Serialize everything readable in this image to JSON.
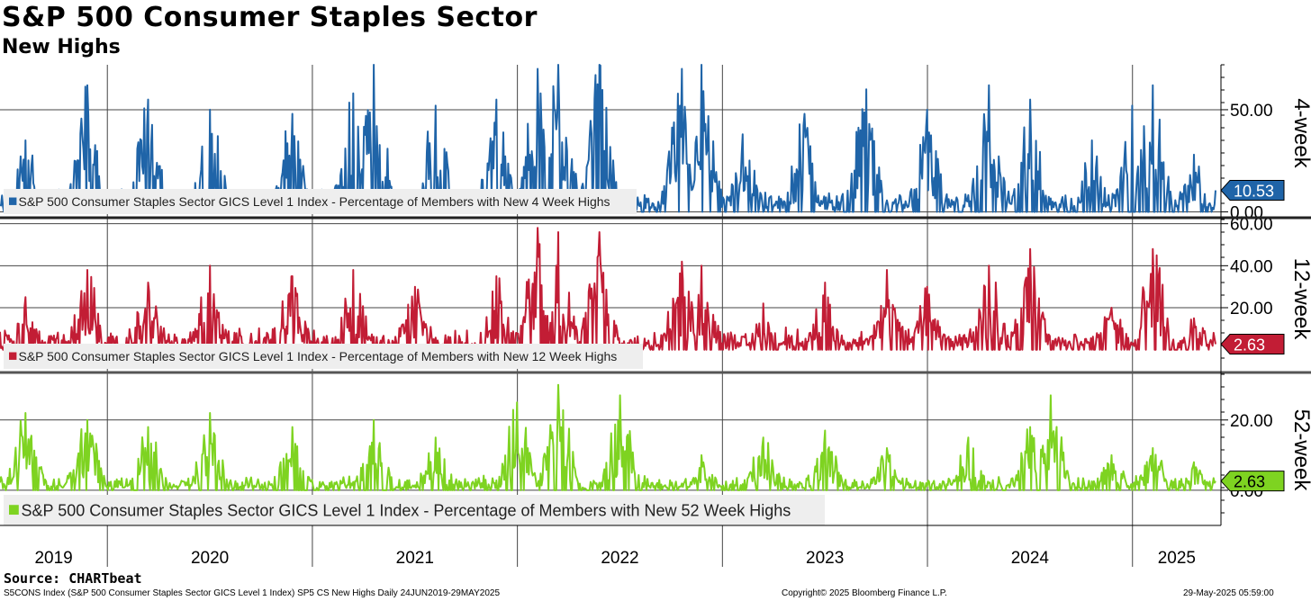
{
  "title": "S&P 500 Consumer Staples Sector",
  "subtitle": "New Highs",
  "source": "Source: CHARTbeat",
  "footer": {
    "left": "S5CONS Index (S&P 500 Consumer Staples Sector GICS Level 1 Index) SP5 CS New Highs  Daily 24JUN2019-29MAY2025",
    "center": "Copyright© 2025 Bloomberg Finance L.P.",
    "right": "29-May-2025 05:59:00"
  },
  "chart_data": {
    "type": "line",
    "x_range": [
      "2019-06-24",
      "2025-05-29"
    ],
    "x_tick_labels": [
      "2019",
      "2020",
      "2021",
      "2022",
      "2023",
      "2024",
      "2025"
    ],
    "series": [
      {
        "name": "S&P 500 Consumer Staples Sector GICS Level 1 Index - Percentage of Members with New 4 Week Highs",
        "panel_label": "4-week",
        "color": "#1f64a8",
        "ylim": [
          -2,
          72
        ],
        "y_ticks": [
          "50.00",
          "0.00"
        ],
        "y_tick_values": [
          50,
          0
        ],
        "last_value": "10.53",
        "peaks": [
          [
            2019.6,
            35
          ],
          [
            2019.9,
            62
          ],
          [
            2020.2,
            55
          ],
          [
            2020.5,
            50
          ],
          [
            2020.9,
            48
          ],
          [
            2021.2,
            58
          ],
          [
            2021.3,
            75
          ],
          [
            2021.6,
            52
          ],
          [
            2021.9,
            55
          ],
          [
            2022.1,
            70
          ],
          [
            2022.2,
            80
          ],
          [
            2022.4,
            72
          ],
          [
            2022.8,
            70
          ],
          [
            2022.9,
            72
          ],
          [
            2023.1,
            38
          ],
          [
            2023.4,
            48
          ],
          [
            2023.7,
            60
          ],
          [
            2024.0,
            50
          ],
          [
            2024.3,
            62
          ],
          [
            2024.5,
            55
          ],
          [
            2024.8,
            35
          ],
          [
            2025.0,
            52
          ],
          [
            2025.1,
            62
          ],
          [
            2025.3,
            28
          ]
        ]
      },
      {
        "name": "S&P 500 Consumer Staples Sector GICS Level 1 Index - Percentage of Members with New 12 Week Highs",
        "panel_label": "12-week",
        "color": "#c21d35",
        "ylim": [
          -10,
          62
        ],
        "y_ticks": [
          "60.00",
          "40.00",
          "20.00"
        ],
        "y_tick_values": [
          60,
          40,
          20
        ],
        "last_value": "2.63",
        "peaks": [
          [
            2019.6,
            25
          ],
          [
            2019.9,
            38
          ],
          [
            2020.2,
            32
          ],
          [
            2020.5,
            40
          ],
          [
            2020.9,
            35
          ],
          [
            2021.2,
            38
          ],
          [
            2021.5,
            30
          ],
          [
            2021.9,
            35
          ],
          [
            2022.1,
            58
          ],
          [
            2022.2,
            56
          ],
          [
            2022.4,
            56
          ],
          [
            2022.8,
            42
          ],
          [
            2022.9,
            40
          ],
          [
            2023.2,
            22
          ],
          [
            2023.5,
            32
          ],
          [
            2023.8,
            38
          ],
          [
            2024.0,
            30
          ],
          [
            2024.3,
            40
          ],
          [
            2024.5,
            48
          ],
          [
            2024.9,
            20
          ],
          [
            2025.1,
            48
          ],
          [
            2025.3,
            15
          ]
        ]
      },
      {
        "name": "S&P 500 Consumer Staples Sector GICS Level 1 Index - Percentage of Members with New 52 Week Highs",
        "panel_label": "52-week",
        "color": "#7ed321",
        "ylim": [
          -10,
          33
        ],
        "y_ticks": [
          "20.00",
          "0.00"
        ],
        "y_tick_values": [
          20,
          0
        ],
        "last_value": "2.63",
        "peaks": [
          [
            2019.6,
            22
          ],
          [
            2019.9,
            20
          ],
          [
            2020.2,
            18
          ],
          [
            2020.5,
            22
          ],
          [
            2020.9,
            18
          ],
          [
            2021.3,
            20
          ],
          [
            2021.6,
            15
          ],
          [
            2022.0,
            25
          ],
          [
            2022.2,
            30
          ],
          [
            2022.5,
            27
          ],
          [
            2022.9,
            10
          ],
          [
            2023.2,
            15
          ],
          [
            2023.5,
            17
          ],
          [
            2023.8,
            12
          ],
          [
            2024.2,
            15
          ],
          [
            2024.5,
            18
          ],
          [
            2024.6,
            27
          ],
          [
            2024.9,
            10
          ],
          [
            2025.1,
            12
          ],
          [
            2025.3,
            8
          ]
        ]
      }
    ]
  }
}
